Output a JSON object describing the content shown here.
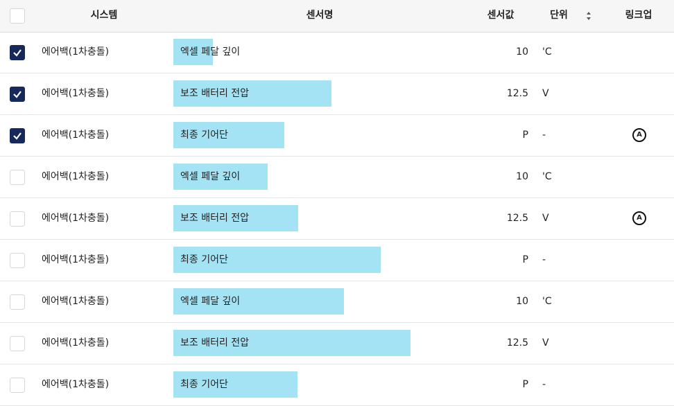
{
  "header": {
    "columns": [
      "시스템",
      "센서명",
      "센서값",
      "단위",
      "링크업"
    ]
  },
  "table": {
    "rows": [
      {
        "checked": true,
        "system": "에어백(1차충돌)",
        "sensor": "엑셀 페달 깊이",
        "value": 10,
        "unit": "'C"
      },
      {
        "checked": true,
        "system": "에어백(1차충돌)",
        "sensor": "보조 배터리 전압",
        "value": 12.5,
        "unit": "V"
      },
      {
        "checked": true,
        "system": "에어백(1차충돌)",
        "sensor": "최종 기어단",
        "value": "P",
        "unit": "-",
        "linkup": "A"
      },
      {
        "checked": false,
        "system": "에어백(1차충돌)",
        "sensor": "엑셀 페달 깊이",
        "value": 10,
        "unit": "'C"
      },
      {
        "checked": false,
        "system": "에어백(1차충돌)",
        "sensor": "보조 배터리 전압",
        "value": 12.5,
        "unit": "V",
        "linkup": "A"
      },
      {
        "checked": false,
        "system": "에어백(1차충돌)",
        "sensor": "최종 기어단",
        "value": "P",
        "unit": "-"
      },
      {
        "checked": false,
        "system": "에어백(1차충돌)",
        "sensor": "엑셀 페달 깊이",
        "value": 10,
        "unit": "'C"
      },
      {
        "checked": false,
        "system": "에어백(1차충돌)",
        "sensor": "보조 배터리 전압",
        "value": 12.5,
        "unit": "V"
      },
      {
        "checked": false,
        "system": "에어백(1차충돌)",
        "sensor": "최종 기어단",
        "value": "P",
        "unit": "-"
      }
    ]
  }
}
